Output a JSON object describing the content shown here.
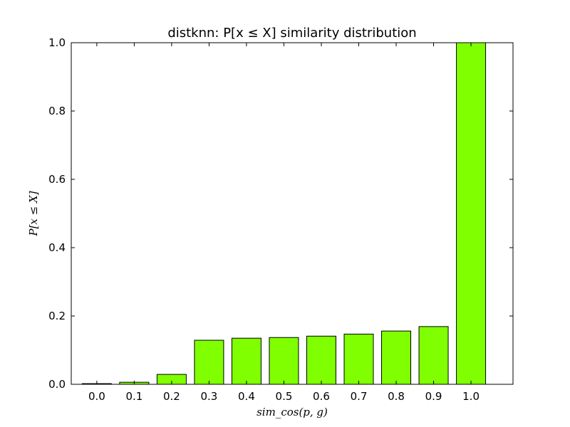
{
  "chart_data": {
    "type": "bar",
    "title": "distknn: P[x ≤ X] similarity distribution",
    "xlabel": "sim_cos(p, g)",
    "ylabel": "P[x ≤ X]",
    "categories": [
      "0.0",
      "0.1",
      "0.2",
      "0.3",
      "0.4",
      "0.5",
      "0.6",
      "0.7",
      "0.8",
      "0.9",
      "1.0"
    ],
    "values": [
      0.002,
      0.006,
      0.029,
      0.129,
      0.135,
      0.137,
      0.141,
      0.147,
      0.156,
      0.169,
      1.0
    ],
    "ylim": [
      0,
      1.0
    ],
    "yticks": [
      "0.0",
      "0.2",
      "0.4",
      "0.6",
      "0.8",
      "1.0"
    ],
    "bar_color": "#7fff00",
    "grid": false,
    "legend": "none"
  }
}
